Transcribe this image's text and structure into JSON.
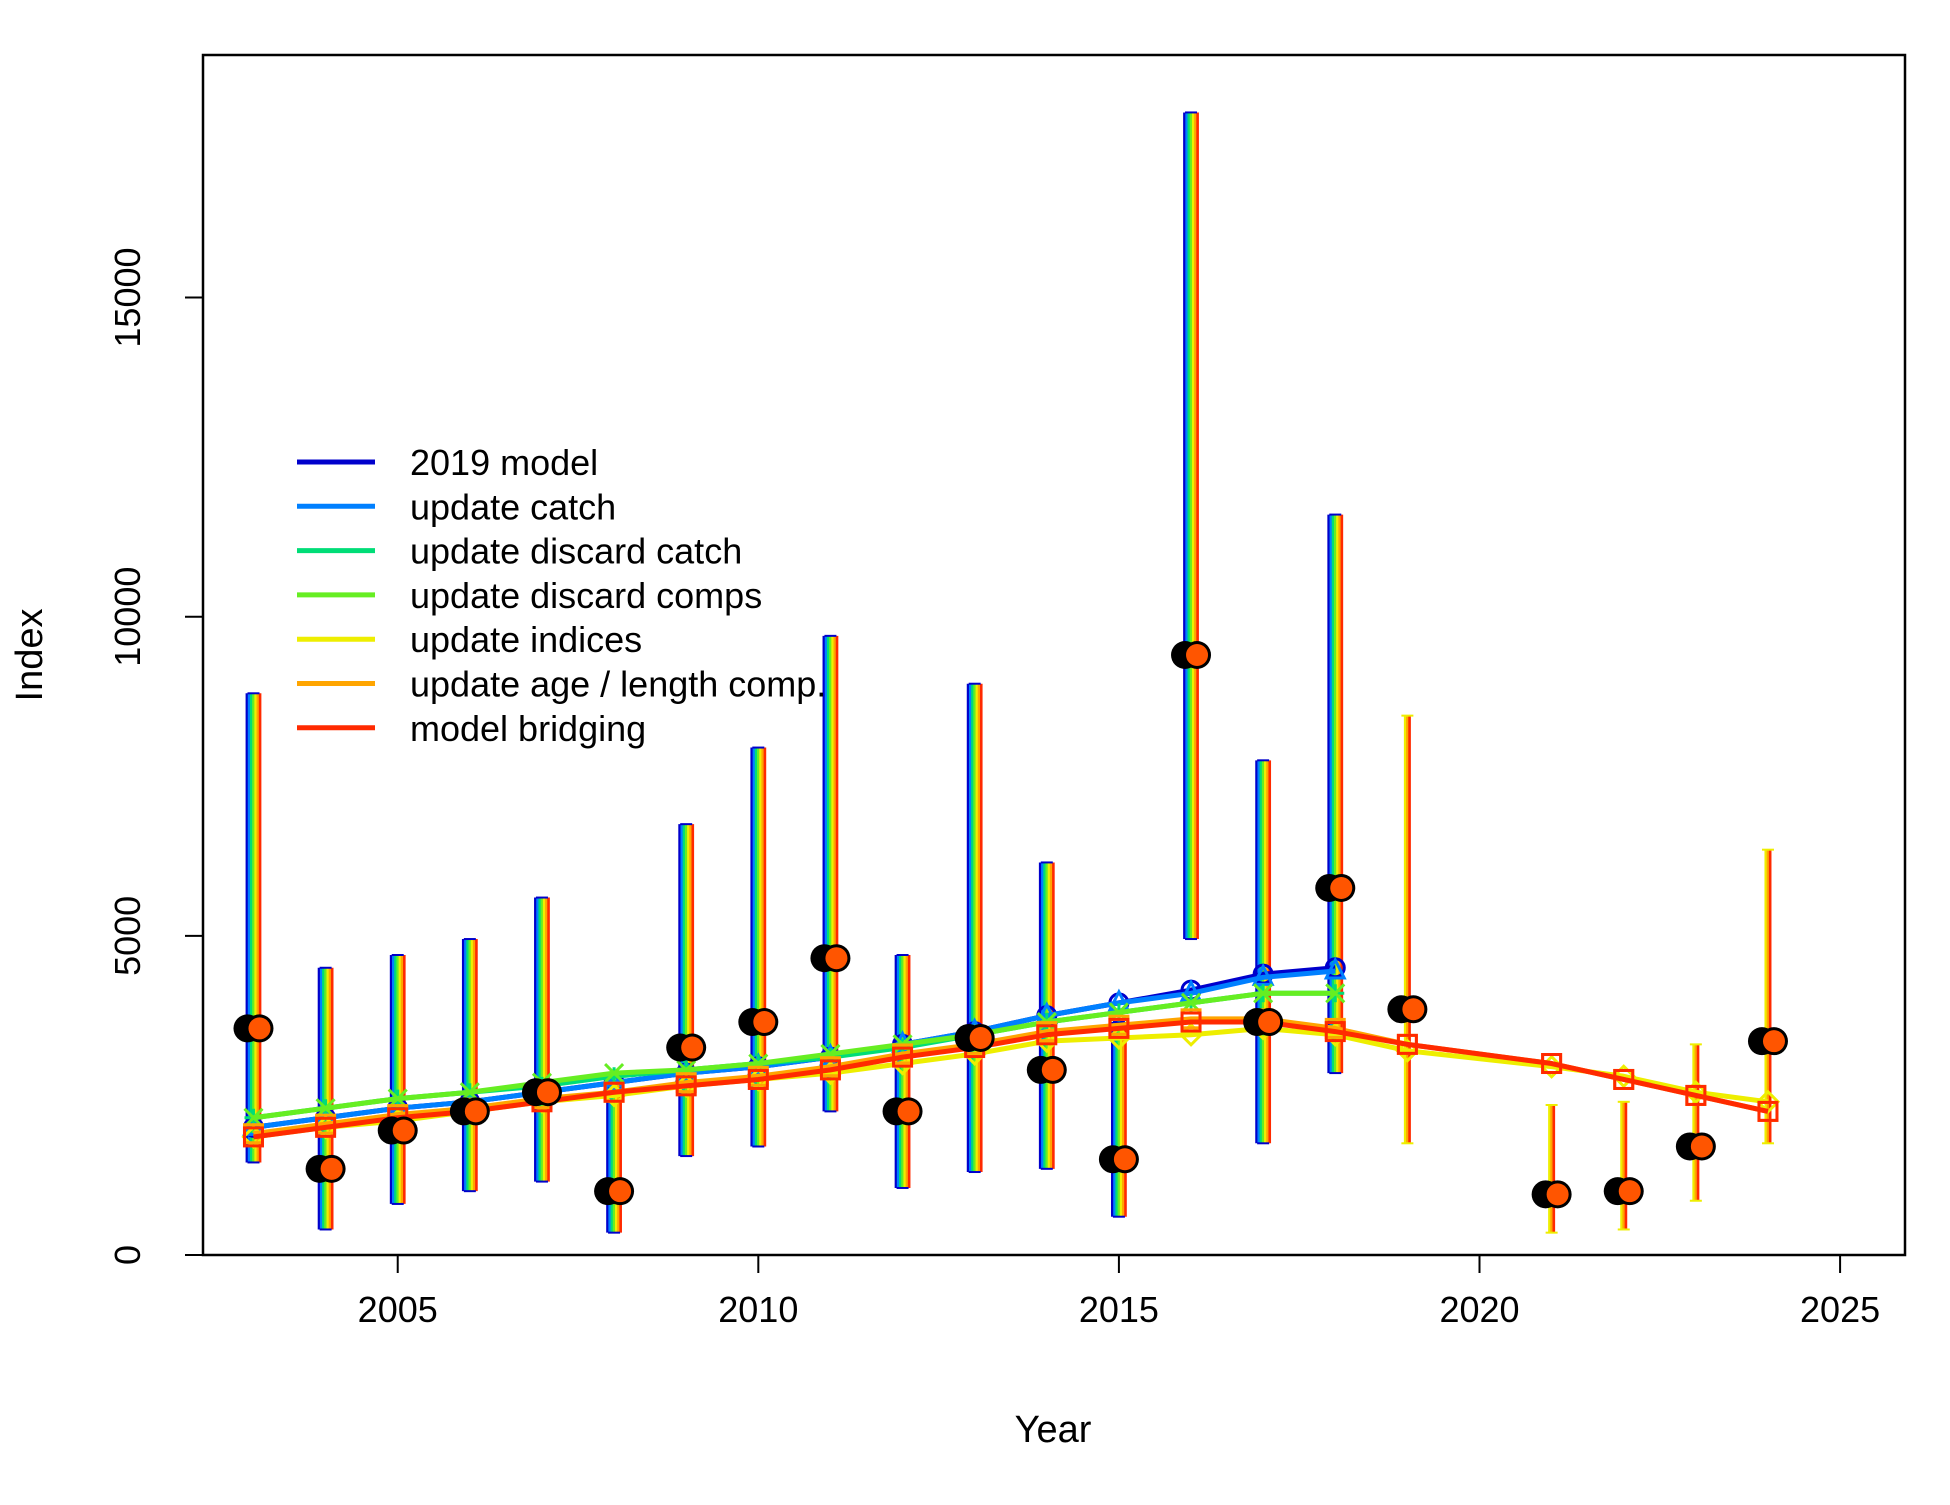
{
  "chart_data": {
    "type": "line",
    "xlabel": "Year",
    "ylabel": "Index",
    "xlim": [
      2002.3,
      2025.9
    ],
    "ylim": [
      0,
      18800
    ],
    "xticks": [
      2005,
      2010,
      2015,
      2020,
      2025
    ],
    "yticks": [
      0,
      5000,
      10000,
      15000
    ],
    "legend_position": "left",
    "series": [
      {
        "name": "2019 model",
        "color": "#0000CC",
        "marker": "circle",
        "x": [
          2003,
          2004,
          2005,
          2006,
          2007,
          2008,
          2009,
          2010,
          2011,
          2012,
          2013,
          2014,
          2015,
          2016,
          2017,
          2018
        ],
        "values": [
          2000,
          2150,
          2300,
          2400,
          2550,
          2700,
          2850,
          2950,
          3100,
          3300,
          3500,
          3750,
          3950,
          4150,
          4400,
          4500
        ]
      },
      {
        "name": "update catch",
        "color": "#0080FF",
        "marker": "triangle",
        "x": [
          2003,
          2004,
          2005,
          2006,
          2007,
          2008,
          2009,
          2010,
          2011,
          2012,
          2013,
          2014,
          2015,
          2016,
          2017,
          2018
        ],
        "values": [
          2000,
          2150,
          2300,
          2400,
          2550,
          2700,
          2850,
          2950,
          3100,
          3300,
          3500,
          3750,
          3950,
          4100,
          4350,
          4450
        ]
      },
      {
        "name": "update discard catch",
        "color": "#00DD77",
        "marker": "plus",
        "x": [
          2003,
          2004,
          2005,
          2006,
          2007,
          2008,
          2009,
          2010,
          2011,
          2012,
          2013,
          2014,
          2015,
          2016,
          2017,
          2018
        ],
        "values": [
          2150,
          2300,
          2450,
          2550,
          2650,
          2800,
          2900,
          3000,
          3100,
          3250,
          3450,
          3650,
          3800,
          3950,
          4100,
          4100
        ]
      },
      {
        "name": "update discard comps",
        "color": "#66EE22",
        "marker": "x",
        "x": [
          2003,
          2004,
          2005,
          2006,
          2007,
          2008,
          2009,
          2010,
          2011,
          2012,
          2013,
          2014,
          2015,
          2016,
          2017,
          2018
        ],
        "values": [
          2150,
          2300,
          2450,
          2550,
          2700,
          2850,
          2900,
          3000,
          3150,
          3300,
          3450,
          3650,
          3800,
          3950,
          4100,
          4100
        ]
      },
      {
        "name": "update indices",
        "color": "#EEEE00",
        "marker": "diamond",
        "x": [
          2003,
          2004,
          2005,
          2006,
          2007,
          2008,
          2009,
          2010,
          2011,
          2012,
          2013,
          2014,
          2015,
          2016,
          2017,
          2018,
          2019,
          2021,
          2022,
          2023,
          2024
        ],
        "values": [
          1850,
          2000,
          2100,
          2250,
          2400,
          2500,
          2650,
          2750,
          2850,
          3000,
          3150,
          3350,
          3400,
          3450,
          3550,
          3450,
          3200,
          2950,
          2800,
          2550,
          2400
        ]
      },
      {
        "name": "update age / length comp.",
        "color": "#FFA500",
        "marker": "square",
        "x": [
          2003,
          2004,
          2005,
          2006,
          2007,
          2008,
          2009,
          2010,
          2011,
          2012,
          2013,
          2014,
          2015,
          2016,
          2017,
          2018,
          2019,
          2021,
          2022,
          2023,
          2024
        ],
        "values": [
          1900,
          2050,
          2200,
          2300,
          2450,
          2550,
          2700,
          2800,
          2950,
          3150,
          3300,
          3500,
          3600,
          3700,
          3700,
          3550,
          3300,
          3000,
          2750,
          2500,
          2250
        ]
      },
      {
        "name": "model bridging",
        "color": "#FF2A00",
        "marker": "square",
        "x": [
          2003,
          2004,
          2005,
          2006,
          2007,
          2008,
          2009,
          2010,
          2011,
          2012,
          2013,
          2014,
          2015,
          2016,
          2017,
          2018,
          2019,
          2021,
          2022,
          2023,
          2024
        ],
        "values": [
          1850,
          2000,
          2150,
          2250,
          2400,
          2550,
          2650,
          2750,
          2900,
          3100,
          3250,
          3450,
          3550,
          3650,
          3650,
          3500,
          3300,
          3000,
          2750,
          2500,
          2250
        ]
      }
    ],
    "observations": {
      "x": [
        2003,
        2004,
        2005,
        2006,
        2007,
        2008,
        2009,
        2010,
        2011,
        2012,
        2013,
        2014,
        2015,
        2016,
        2017,
        2018,
        2019,
        2021,
        2022,
        2023,
        2024
      ],
      "values": [
        3550,
        1350,
        1950,
        2250,
        2550,
        1000,
        3250,
        3650,
        4650,
        2250,
        3400,
        2900,
        1500,
        9400,
        3650,
        5750,
        3850,
        950,
        1000,
        1700,
        3350
      ],
      "lower": [
        1450,
        400,
        800,
        1000,
        1150,
        350,
        1550,
        1700,
        2250,
        1050,
        1300,
        1350,
        600,
        4950,
        1750,
        2850,
        1750,
        350,
        400,
        850,
        1750
      ],
      "upper": [
        8800,
        4500,
        4700,
        4950,
        5600,
        2800,
        6750,
        7950,
        9700,
        4700,
        8950,
        6150,
        3650,
        17900,
        7750,
        11600,
        8450,
        2350,
        2400,
        3300,
        6350
      ]
    },
    "errorbar_colors": [
      "#0000CC",
      "#0080FF",
      "#00DD77",
      "#66EE22",
      "#EEEE00",
      "#FFA500",
      "#FF2A00"
    ]
  }
}
